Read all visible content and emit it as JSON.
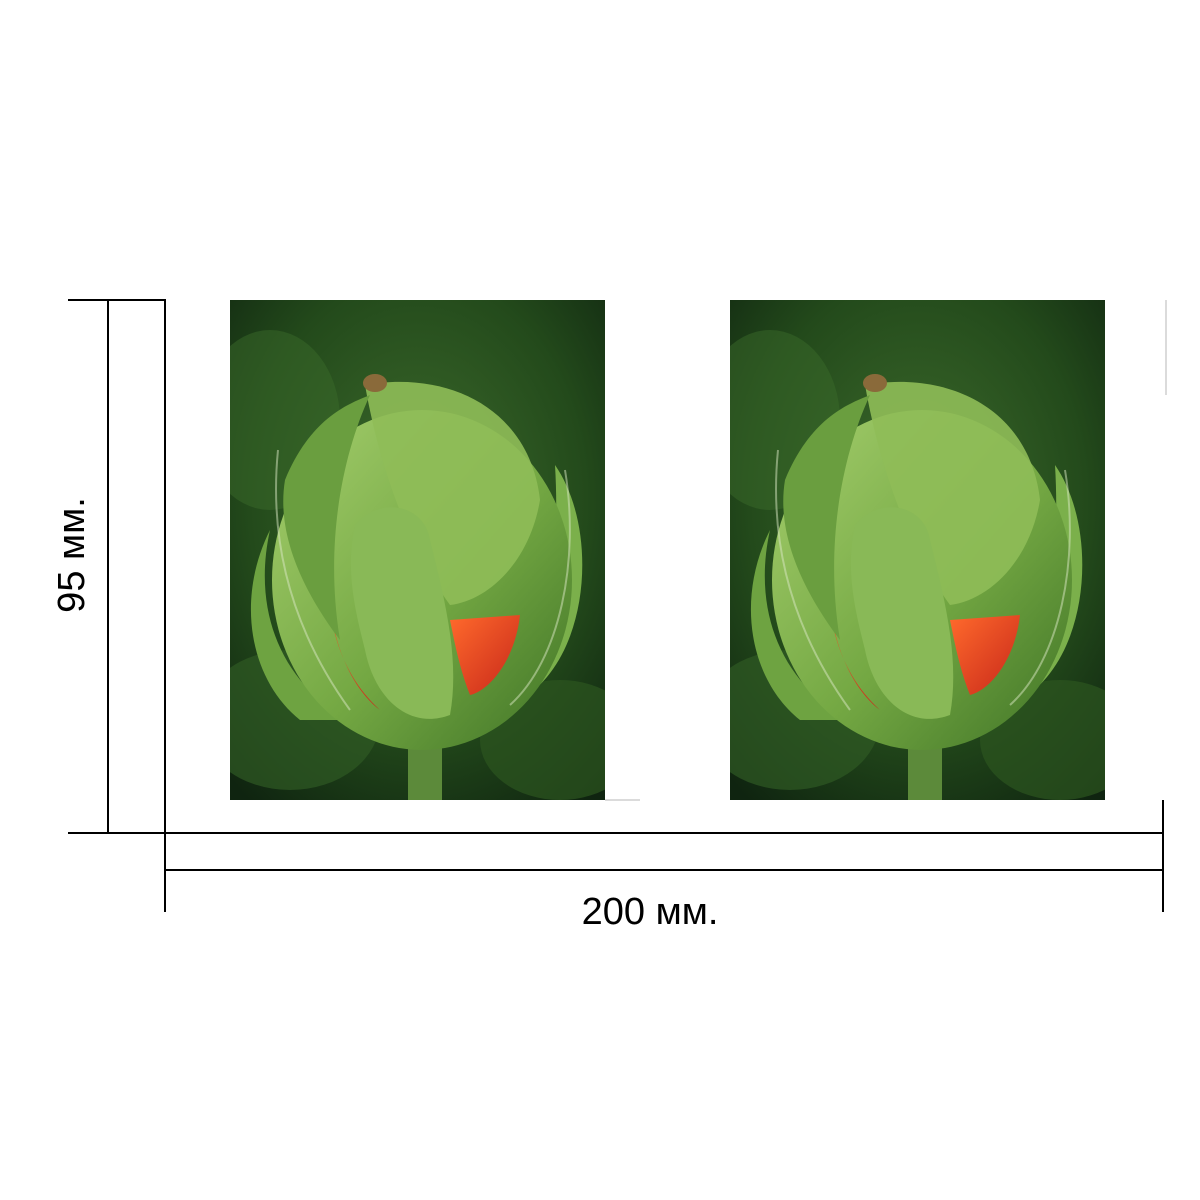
{
  "dimensions": {
    "height_label": "95 мм.",
    "width_label": "200 мм."
  },
  "photos": [
    {
      "subject": "poppy-bud",
      "position": "left"
    },
    {
      "subject": "poppy-bud",
      "position": "right"
    }
  ],
  "colors": {
    "background": "#ffffff",
    "line": "#000000",
    "foliage_dark": "#1f3a17",
    "bud_green": "#7fb04a",
    "petal_red": "#e2421c"
  }
}
